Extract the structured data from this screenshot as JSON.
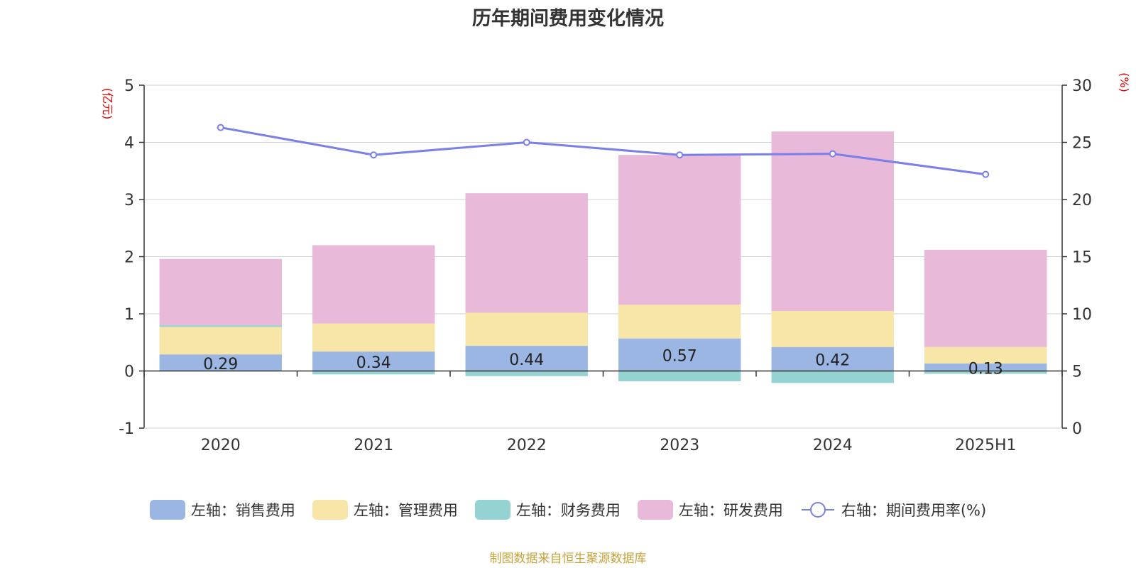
{
  "chart_data": {
    "type": "bar",
    "title": "历年期间费用变化情况",
    "categories": [
      "2020",
      "2021",
      "2022",
      "2023",
      "2024",
      "2025H1"
    ],
    "y_left": {
      "unit": "(亿元)",
      "range": [
        -1,
        5
      ],
      "ticks": [
        -1,
        0,
        1,
        2,
        3,
        4,
        5
      ]
    },
    "y_right": {
      "unit": "(%)",
      "range": [
        0,
        30
      ],
      "ticks": [
        0,
        5,
        10,
        15,
        20,
        25,
        30
      ]
    },
    "grid": true,
    "legend_position": "bottom",
    "series": [
      {
        "name": "左轴：销售费用",
        "axis": "left",
        "type": "bar",
        "stack": true,
        "color": "#9bb6e2",
        "values": [
          0.29,
          0.34,
          0.44,
          0.57,
          0.42,
          0.13
        ],
        "data_labels": [
          "0.29",
          "0.34",
          "0.44",
          "0.57",
          "0.42",
          "0.13"
        ]
      },
      {
        "name": "左轴：管理费用",
        "axis": "left",
        "type": "bar",
        "stack": true,
        "color": "#f8e6a8",
        "values": [
          0.48,
          0.49,
          0.58,
          0.59,
          0.63,
          0.29
        ]
      },
      {
        "name": "左轴：财务费用",
        "axis": "left",
        "type": "bar",
        "stack": true,
        "color": "#95d3d3",
        "values": [
          0.03,
          -0.06,
          -0.09,
          -0.18,
          -0.21,
          -0.05
        ]
      },
      {
        "name": "左轴：研发费用",
        "axis": "left",
        "type": "bar",
        "stack": true,
        "color": "#e8b9d9",
        "values": [
          1.16,
          1.37,
          2.09,
          2.62,
          3.14,
          1.7
        ]
      },
      {
        "name": "右轴：期间费用率(%)",
        "axis": "right",
        "type": "line",
        "color": "#7b7fe8",
        "values": [
          26.3,
          23.9,
          25.0,
          23.9,
          24.0,
          22.2
        ]
      }
    ]
  },
  "footer": "制图数据来自恒生聚源数据库"
}
